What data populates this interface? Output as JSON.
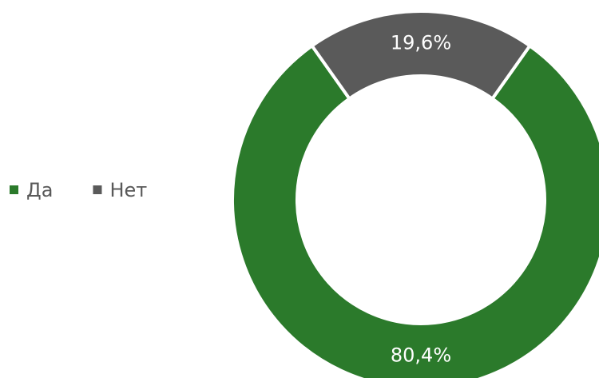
{
  "chart_data": {
    "type": "donut",
    "categories": [
      "Да",
      "Нет"
    ],
    "values": [
      80.4,
      19.6
    ],
    "value_labels": [
      "80,4%",
      "19,6%"
    ],
    "colors": [
      "#2b7a2b",
      "#5a5a5a"
    ],
    "legend": "left"
  }
}
